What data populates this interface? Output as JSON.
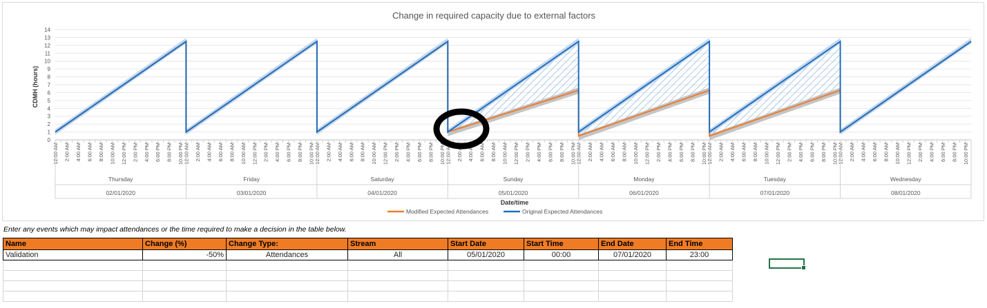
{
  "chart_data": {
    "type": "line",
    "title": "Change in required capacity due to external factors",
    "xlabel": "Date/time",
    "ylabel": "CDMH (hours)",
    "ylim": [
      0,
      14
    ],
    "yticks": [
      0,
      1,
      2,
      3,
      4,
      5,
      6,
      7,
      8,
      9,
      10,
      11,
      12,
      13,
      14
    ],
    "hour_tick_labels": [
      "12:00 AM",
      "2:00 AM",
      "4:00 AM",
      "6:00 AM",
      "8:00 AM",
      "10:00 AM",
      "12:00 PM",
      "2:00 PM",
      "4:00 PM",
      "6:00 PM",
      "8:00 PM",
      "10:00 PM"
    ],
    "days": [
      {
        "weekday": "Thursday",
        "date": "02/01/2020",
        "original": [
          1.0,
          12.5
        ],
        "modified": null
      },
      {
        "weekday": "Friday",
        "date": "03/01/2020",
        "original": [
          1.0,
          12.5
        ],
        "modified": null
      },
      {
        "weekday": "Saturday",
        "date": "04/01/2020",
        "original": [
          1.0,
          12.5
        ],
        "modified": null
      },
      {
        "weekday": "Sunday",
        "date": "05/01/2020",
        "original": [
          1.0,
          12.5
        ],
        "modified": [
          1.0,
          6.3
        ]
      },
      {
        "weekday": "Monday",
        "date": "06/01/2020",
        "original": [
          1.0,
          12.5
        ],
        "modified": [
          0.5,
          6.3
        ]
      },
      {
        "weekday": "Tuesday",
        "date": "07/01/2020",
        "original": [
          1.0,
          12.5
        ],
        "modified": [
          0.5,
          6.3
        ]
      },
      {
        "weekday": "Wednesday",
        "date": "08/01/2020",
        "original": [
          1.0,
          12.5
        ],
        "modified": null
      }
    ],
    "series": [
      {
        "name": "Modified Expected Attendances",
        "color": "#ed7d31"
      },
      {
        "name": "Original Expected Attendances",
        "color": "#1f6fbf"
      }
    ],
    "legend_position": "bottom",
    "grid": true
  },
  "note": "Enter any events which may impact attendances or the time required to make a decision in the table below.",
  "table": {
    "headers": [
      "Name",
      "Change (%)",
      "Change Type:",
      "Stream",
      "Start Date",
      "Start Time",
      "End Date",
      "End Time"
    ],
    "rows": [
      [
        "Validation",
        "-50%",
        "Attendances",
        "All",
        "05/01/2020",
        "00:00",
        "07/01/2020",
        "23:00"
      ]
    ]
  }
}
